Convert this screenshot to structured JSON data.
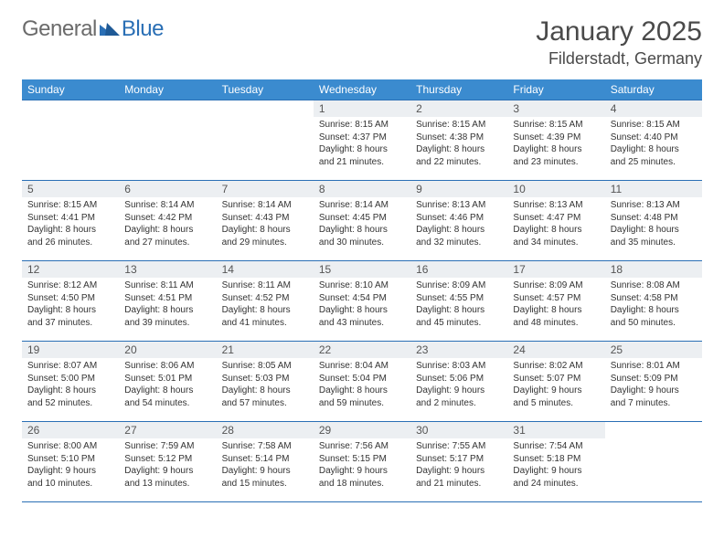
{
  "logo": {
    "general": "General",
    "blue": "Blue"
  },
  "title": "January 2025",
  "location": "Filderstadt, Germany",
  "colors": {
    "header_bg": "#3b8bcf",
    "header_text": "#ffffff",
    "border": "#2a6fb5",
    "daynum_bg": "#eceff2",
    "text": "#333333",
    "logo_gray": "#6b6b6b",
    "logo_blue": "#2a6fb5"
  },
  "weekdays": [
    "Sunday",
    "Monday",
    "Tuesday",
    "Wednesday",
    "Thursday",
    "Friday",
    "Saturday"
  ],
  "weeks": [
    [
      {
        "empty": true
      },
      {
        "empty": true
      },
      {
        "empty": true
      },
      {
        "day": "1",
        "sunrise": "8:15 AM",
        "sunset": "4:37 PM",
        "dl_h": "8",
        "dl_m": "21"
      },
      {
        "day": "2",
        "sunrise": "8:15 AM",
        "sunset": "4:38 PM",
        "dl_h": "8",
        "dl_m": "22"
      },
      {
        "day": "3",
        "sunrise": "8:15 AM",
        "sunset": "4:39 PM",
        "dl_h": "8",
        "dl_m": "23"
      },
      {
        "day": "4",
        "sunrise": "8:15 AM",
        "sunset": "4:40 PM",
        "dl_h": "8",
        "dl_m": "25"
      }
    ],
    [
      {
        "day": "5",
        "sunrise": "8:15 AM",
        "sunset": "4:41 PM",
        "dl_h": "8",
        "dl_m": "26"
      },
      {
        "day": "6",
        "sunrise": "8:14 AM",
        "sunset": "4:42 PM",
        "dl_h": "8",
        "dl_m": "27"
      },
      {
        "day": "7",
        "sunrise": "8:14 AM",
        "sunset": "4:43 PM",
        "dl_h": "8",
        "dl_m": "29"
      },
      {
        "day": "8",
        "sunrise": "8:14 AM",
        "sunset": "4:45 PM",
        "dl_h": "8",
        "dl_m": "30"
      },
      {
        "day": "9",
        "sunrise": "8:13 AM",
        "sunset": "4:46 PM",
        "dl_h": "8",
        "dl_m": "32"
      },
      {
        "day": "10",
        "sunrise": "8:13 AM",
        "sunset": "4:47 PM",
        "dl_h": "8",
        "dl_m": "34"
      },
      {
        "day": "11",
        "sunrise": "8:13 AM",
        "sunset": "4:48 PM",
        "dl_h": "8",
        "dl_m": "35"
      }
    ],
    [
      {
        "day": "12",
        "sunrise": "8:12 AM",
        "sunset": "4:50 PM",
        "dl_h": "8",
        "dl_m": "37"
      },
      {
        "day": "13",
        "sunrise": "8:11 AM",
        "sunset": "4:51 PM",
        "dl_h": "8",
        "dl_m": "39"
      },
      {
        "day": "14",
        "sunrise": "8:11 AM",
        "sunset": "4:52 PM",
        "dl_h": "8",
        "dl_m": "41"
      },
      {
        "day": "15",
        "sunrise": "8:10 AM",
        "sunset": "4:54 PM",
        "dl_h": "8",
        "dl_m": "43"
      },
      {
        "day": "16",
        "sunrise": "8:09 AM",
        "sunset": "4:55 PM",
        "dl_h": "8",
        "dl_m": "45"
      },
      {
        "day": "17",
        "sunrise": "8:09 AM",
        "sunset": "4:57 PM",
        "dl_h": "8",
        "dl_m": "48"
      },
      {
        "day": "18",
        "sunrise": "8:08 AM",
        "sunset": "4:58 PM",
        "dl_h": "8",
        "dl_m": "50"
      }
    ],
    [
      {
        "day": "19",
        "sunrise": "8:07 AM",
        "sunset": "5:00 PM",
        "dl_h": "8",
        "dl_m": "52"
      },
      {
        "day": "20",
        "sunrise": "8:06 AM",
        "sunset": "5:01 PM",
        "dl_h": "8",
        "dl_m": "54"
      },
      {
        "day": "21",
        "sunrise": "8:05 AM",
        "sunset": "5:03 PM",
        "dl_h": "8",
        "dl_m": "57"
      },
      {
        "day": "22",
        "sunrise": "8:04 AM",
        "sunset": "5:04 PM",
        "dl_h": "8",
        "dl_m": "59"
      },
      {
        "day": "23",
        "sunrise": "8:03 AM",
        "sunset": "5:06 PM",
        "dl_h": "9",
        "dl_m": "2"
      },
      {
        "day": "24",
        "sunrise": "8:02 AM",
        "sunset": "5:07 PM",
        "dl_h": "9",
        "dl_m": "5"
      },
      {
        "day": "25",
        "sunrise": "8:01 AM",
        "sunset": "5:09 PM",
        "dl_h": "9",
        "dl_m": "7"
      }
    ],
    [
      {
        "day": "26",
        "sunrise": "8:00 AM",
        "sunset": "5:10 PM",
        "dl_h": "9",
        "dl_m": "10"
      },
      {
        "day": "27",
        "sunrise": "7:59 AM",
        "sunset": "5:12 PM",
        "dl_h": "9",
        "dl_m": "13"
      },
      {
        "day": "28",
        "sunrise": "7:58 AM",
        "sunset": "5:14 PM",
        "dl_h": "9",
        "dl_m": "15"
      },
      {
        "day": "29",
        "sunrise": "7:56 AM",
        "sunset": "5:15 PM",
        "dl_h": "9",
        "dl_m": "18"
      },
      {
        "day": "30",
        "sunrise": "7:55 AM",
        "sunset": "5:17 PM",
        "dl_h": "9",
        "dl_m": "21"
      },
      {
        "day": "31",
        "sunrise": "7:54 AM",
        "sunset": "5:18 PM",
        "dl_h": "9",
        "dl_m": "24"
      },
      {
        "empty": true
      }
    ]
  ],
  "labels": {
    "sunrise": "Sunrise:",
    "sunset": "Sunset:",
    "daylight": "Daylight:",
    "hours": "hours",
    "and": "and",
    "minutes": "minutes."
  }
}
